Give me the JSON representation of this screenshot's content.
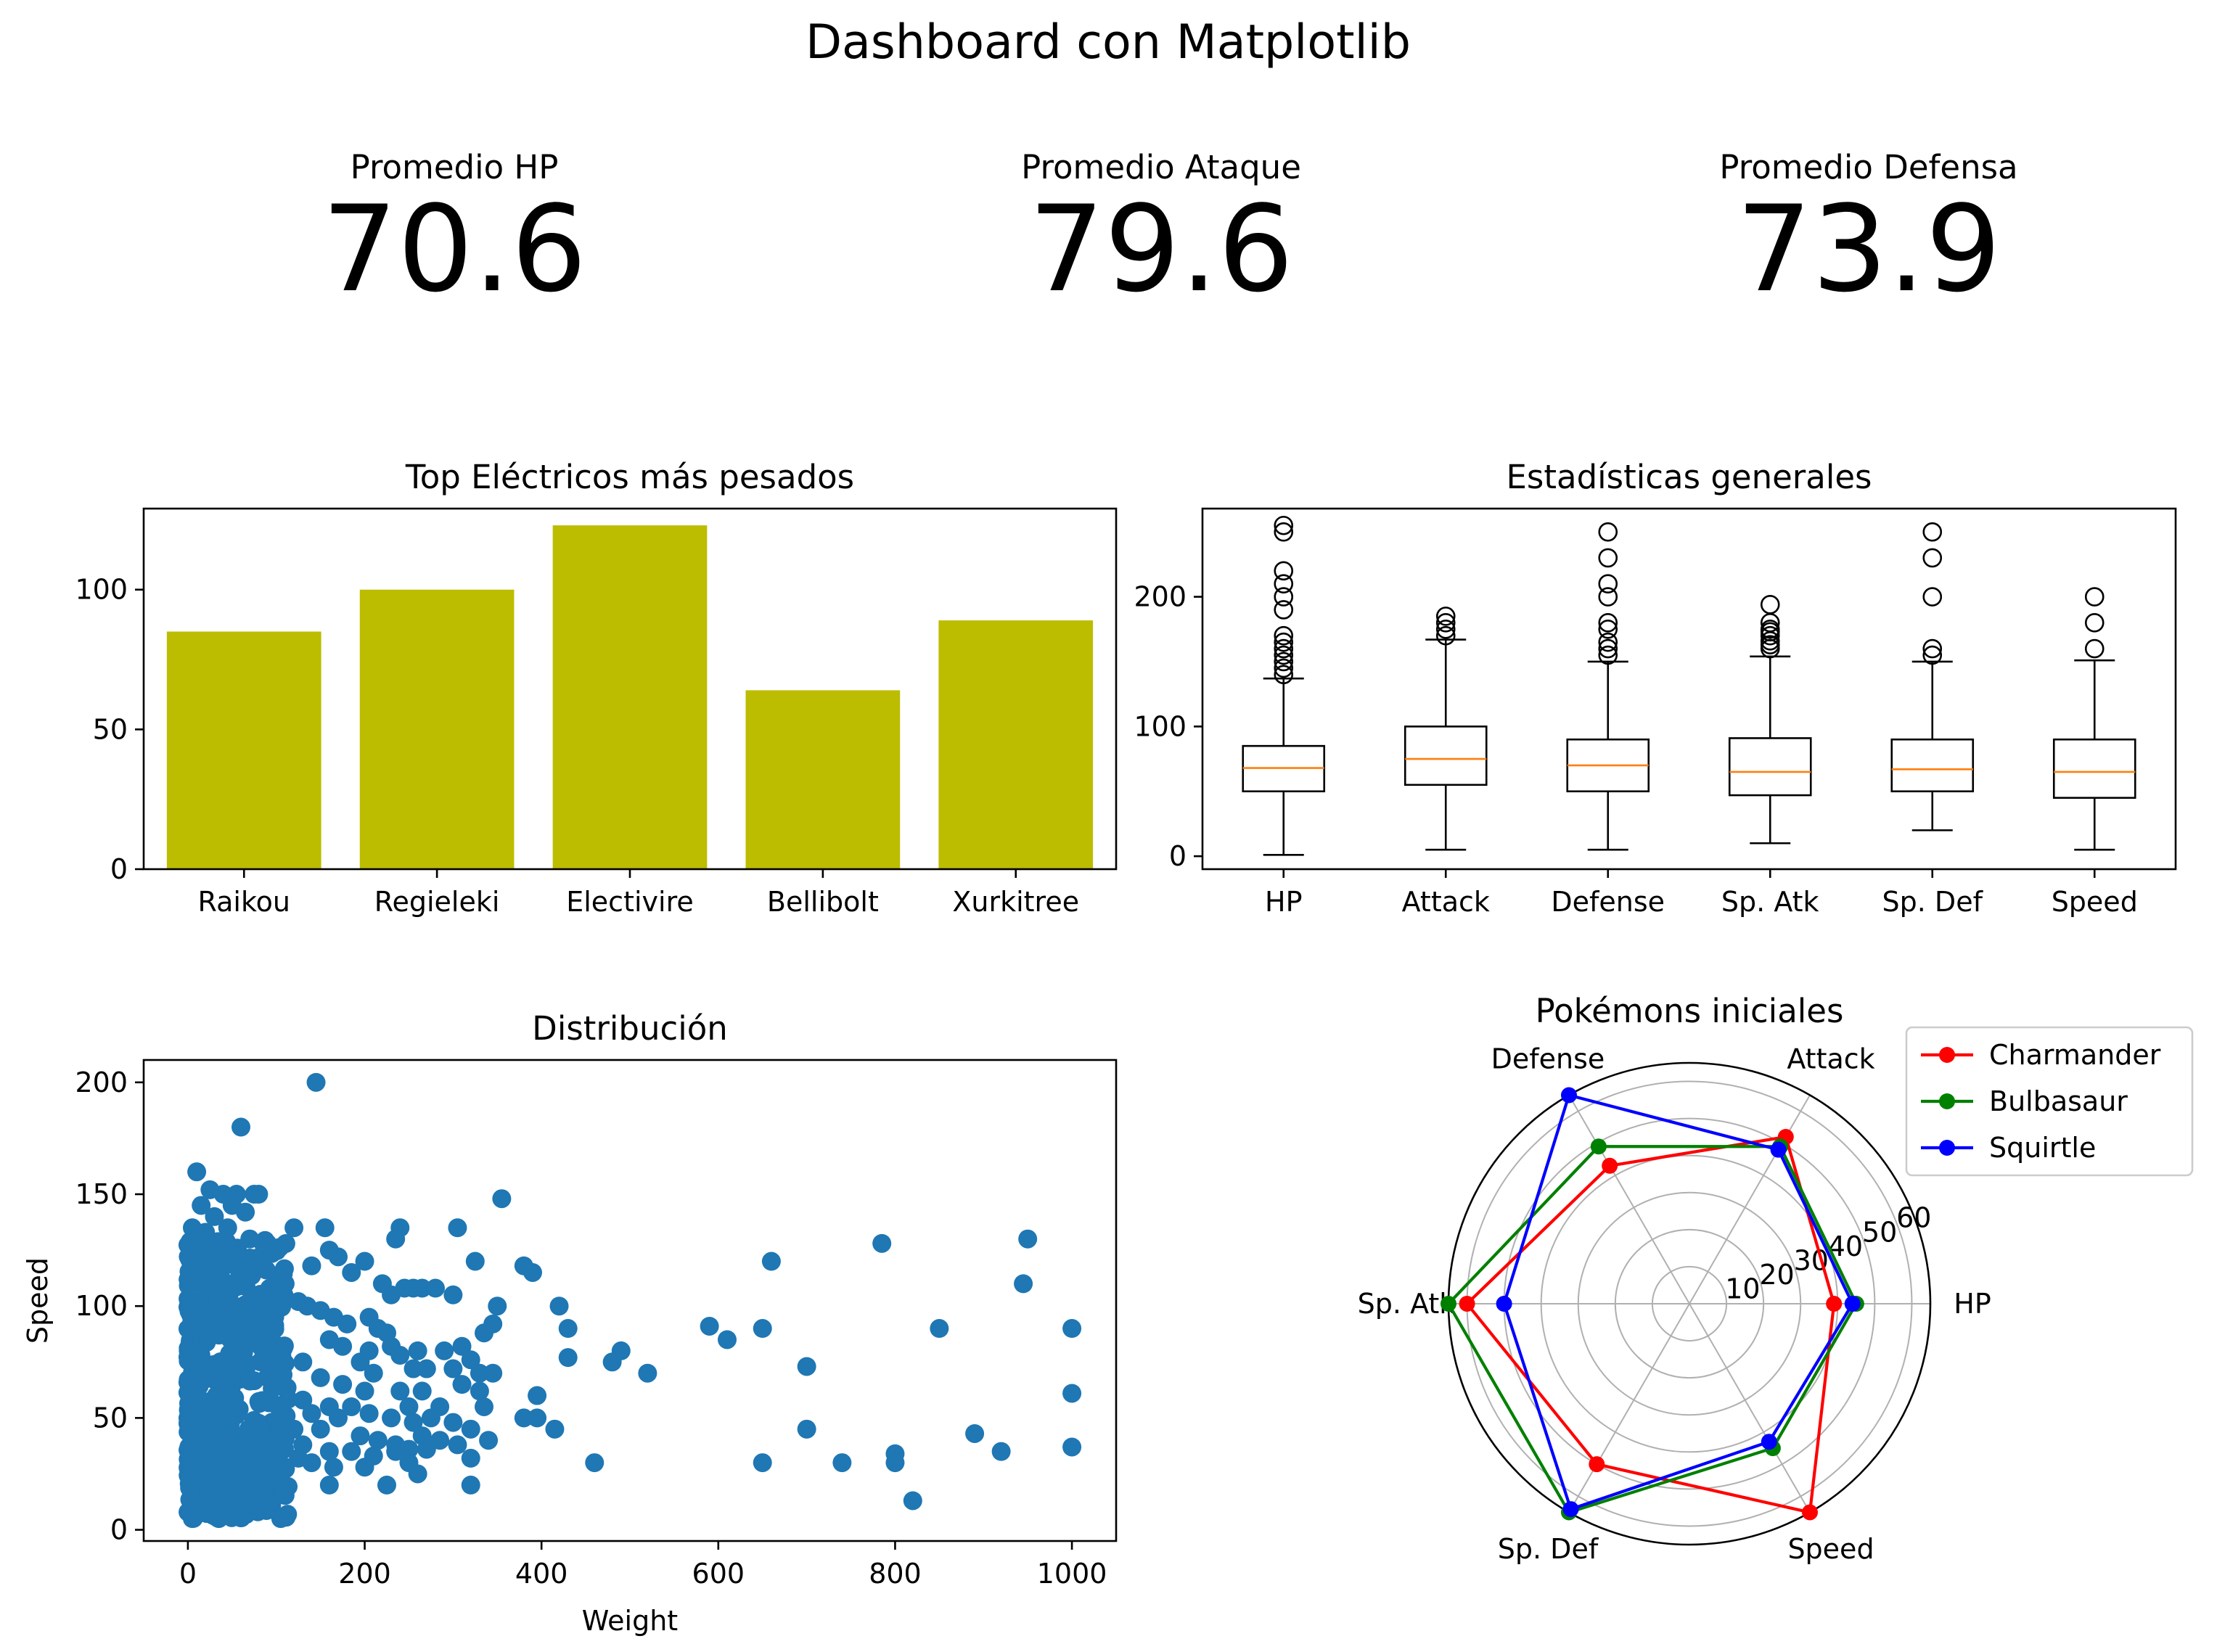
{
  "title": "Dashboard con Matplotlib",
  "kpis": [
    {
      "label": "Promedio HP",
      "value": "70.6"
    },
    {
      "label": "Promedio Ataque",
      "value": "79.6"
    },
    {
      "label": "Promedio Defensa",
      "value": "73.9"
    }
  ],
  "colors": {
    "bar": "#bcbd00",
    "scatter": "#1f77b4",
    "median": "#ff7f0e",
    "charmander": "#ff0000",
    "bulbasaur": "#008000",
    "squirtle": "#0000ff"
  },
  "chart_data": [
    {
      "type": "bar",
      "title": "Top Eléctricos más pesados",
      "categories": [
        "Raikou",
        "Regieleki",
        "Electivire",
        "Bellibolt",
        "Xurkitree"
      ],
      "values": [
        85,
        100,
        123,
        64,
        89
      ],
      "ylim": [
        0,
        129
      ],
      "yticks": [
        0,
        50,
        100
      ]
    },
    {
      "type": "box",
      "title": "Estadísticas generales",
      "categories": [
        "HP",
        "Attack",
        "Defense",
        "Sp. Atk",
        "Sp. Def",
        "Speed"
      ],
      "boxes": [
        {
          "whislo": 1,
          "q1": 50,
          "med": 68,
          "q3": 85,
          "whishi": 137,
          "fliers": [
            140,
            145,
            150,
            155,
            160,
            165,
            170,
            190,
            200,
            210,
            220,
            250,
            255
          ]
        },
        {
          "whislo": 5,
          "q1": 55,
          "med": 75,
          "q3": 100,
          "whishi": 167,
          "fliers": [
            170,
            175,
            180,
            185
          ]
        },
        {
          "whislo": 5,
          "q1": 50,
          "med": 70,
          "q3": 90,
          "whishi": 150,
          "fliers": [
            155,
            160,
            165,
            175,
            180,
            200,
            210,
            230,
            250
          ]
        },
        {
          "whislo": 10,
          "q1": 47,
          "med": 65,
          "q3": 91,
          "whishi": 154,
          "fliers": [
            160,
            163,
            166,
            170,
            173,
            175,
            180,
            194
          ]
        },
        {
          "whislo": 20,
          "q1": 50,
          "med": 67,
          "q3": 90,
          "whishi": 150,
          "fliers": [
            155,
            160,
            200,
            230,
            250
          ]
        },
        {
          "whislo": 5,
          "q1": 45,
          "med": 65,
          "q3": 90,
          "whishi": 151,
          "fliers": [
            160,
            180,
            200
          ]
        }
      ],
      "ylim": [
        -10,
        268
      ],
      "yticks": [
        0,
        100,
        200
      ]
    },
    {
      "type": "scatter",
      "title": "Distribución",
      "xlabel": "Weight",
      "ylabel": "Speed",
      "xlim": [
        -50,
        1050
      ],
      "ylim": [
        -5,
        210
      ],
      "xticks": [
        0,
        200,
        400,
        600,
        800,
        1000
      ],
      "yticks": [
        0,
        50,
        100,
        150,
        200
      ],
      "points": [
        [
          145,
          200
        ],
        [
          60,
          180
        ],
        [
          10,
          160
        ],
        [
          25,
          152
        ],
        [
          40,
          150
        ],
        [
          55,
          150
        ],
        [
          75,
          150
        ],
        [
          80,
          150
        ],
        [
          355,
          148
        ],
        [
          15,
          145
        ],
        [
          50,
          145
        ],
        [
          65,
          142
        ],
        [
          30,
          140
        ],
        [
          5,
          135
        ],
        [
          20,
          133
        ],
        [
          45,
          135
        ],
        [
          120,
          135
        ],
        [
          155,
          135
        ],
        [
          240,
          135
        ],
        [
          305,
          135
        ],
        [
          235,
          130
        ],
        [
          70,
          130
        ],
        [
          90,
          128
        ],
        [
          660,
          120
        ],
        [
          785,
          128
        ],
        [
          950,
          130
        ],
        [
          160,
          125
        ],
        [
          200,
          120
        ],
        [
          170,
          122
        ],
        [
          325,
          120
        ],
        [
          380,
          118
        ],
        [
          390,
          115
        ],
        [
          185,
          115
        ],
        [
          140,
          118
        ],
        [
          945,
          110
        ],
        [
          110,
          110
        ],
        [
          220,
          110
        ],
        [
          230,
          105
        ],
        [
          245,
          108
        ],
        [
          255,
          108
        ],
        [
          265,
          108
        ],
        [
          280,
          108
        ],
        [
          300,
          105
        ],
        [
          350,
          100
        ],
        [
          420,
          100
        ],
        [
          100,
          105
        ],
        [
          125,
          102
        ],
        [
          135,
          100
        ],
        [
          150,
          98
        ],
        [
          165,
          95
        ],
        [
          180,
          92
        ],
        [
          205,
          95
        ],
        [
          215,
          90
        ],
        [
          225,
          88
        ],
        [
          335,
          88
        ],
        [
          345,
          92
        ],
        [
          430,
          90
        ],
        [
          590,
          91
        ],
        [
          610,
          85
        ],
        [
          650,
          90
        ],
        [
          850,
          90
        ],
        [
          1000,
          90
        ],
        [
          160,
          85
        ],
        [
          175,
          82
        ],
        [
          205,
          80
        ],
        [
          230,
          82
        ],
        [
          240,
          78
        ],
        [
          260,
          80
        ],
        [
          290,
          80
        ],
        [
          310,
          82
        ],
        [
          320,
          76
        ],
        [
          430,
          77
        ],
        [
          490,
          80
        ],
        [
          480,
          75
        ],
        [
          520,
          70
        ],
        [
          700,
          73
        ],
        [
          130,
          75
        ],
        [
          195,
          75
        ],
        [
          210,
          70
        ],
        [
          255,
          72
        ],
        [
          270,
          72
        ],
        [
          300,
          72
        ],
        [
          330,
          70
        ],
        [
          345,
          70
        ],
        [
          150,
          68
        ],
        [
          175,
          65
        ],
        [
          200,
          62
        ],
        [
          240,
          62
        ],
        [
          265,
          62
        ],
        [
          310,
          65
        ],
        [
          330,
          62
        ],
        [
          395,
          60
        ],
        [
          1000,
          61
        ],
        [
          130,
          58
        ],
        [
          160,
          55
        ],
        [
          185,
          55
        ],
        [
          205,
          52
        ],
        [
          250,
          55
        ],
        [
          285,
          55
        ],
        [
          335,
          55
        ],
        [
          110,
          50
        ],
        [
          140,
          52
        ],
        [
          170,
          50
        ],
        [
          230,
          50
        ],
        [
          255,
          48
        ],
        [
          275,
          50
        ],
        [
          300,
          48
        ],
        [
          380,
          50
        ],
        [
          395,
          50
        ],
        [
          320,
          45
        ],
        [
          415,
          45
        ],
        [
          700,
          45
        ],
        [
          890,
          43
        ],
        [
          120,
          45
        ],
        [
          150,
          45
        ],
        [
          195,
          42
        ],
        [
          215,
          40
        ],
        [
          235,
          38
        ],
        [
          265,
          42
        ],
        [
          285,
          40
        ],
        [
          340,
          40
        ],
        [
          920,
          35
        ],
        [
          1000,
          37
        ],
        [
          100,
          40
        ],
        [
          130,
          38
        ],
        [
          160,
          35
        ],
        [
          185,
          35
        ],
        [
          210,
          33
        ],
        [
          235,
          35
        ],
        [
          250,
          36
        ],
        [
          270,
          36
        ],
        [
          305,
          38
        ],
        [
          320,
          32
        ],
        [
          460,
          30
        ],
        [
          650,
          30
        ],
        [
          740,
          30
        ],
        [
          800,
          34
        ],
        [
          800,
          30
        ],
        [
          820,
          13
        ],
        [
          90,
          30
        ],
        [
          110,
          28
        ],
        [
          125,
          32
        ],
        [
          140,
          30
        ],
        [
          165,
          28
        ],
        [
          200,
          28
        ],
        [
          250,
          30
        ],
        [
          260,
          25
        ],
        [
          225,
          20
        ],
        [
          320,
          20
        ],
        [
          160,
          20
        ],
        [
          75,
          25
        ],
        [
          85,
          18
        ],
        [
          70,
          15
        ],
        [
          60,
          20
        ],
        [
          50,
          22
        ],
        [
          105,
          5
        ],
        [
          35,
          5
        ],
        [
          5,
          5
        ]
      ]
    },
    {
      "type": "radar",
      "title": "Pokémons iniciales",
      "axes": [
        "HP",
        "Attack",
        "Defense",
        "Sp. Atk",
        "Sp. Def",
        "Speed"
      ],
      "rticks": [
        10,
        20,
        30,
        40,
        50,
        60
      ],
      "rmax": 65,
      "series": [
        {
          "name": "Charmander",
          "values": [
            39,
            52,
            43,
            60,
            50,
            65
          ]
        },
        {
          "name": "Bulbasaur",
          "values": [
            45,
            49,
            49,
            65,
            65,
            45
          ]
        },
        {
          "name": "Squirtle",
          "values": [
            44,
            48,
            65,
            50,
            64,
            43
          ]
        }
      ],
      "legend": "upper-right"
    }
  ]
}
